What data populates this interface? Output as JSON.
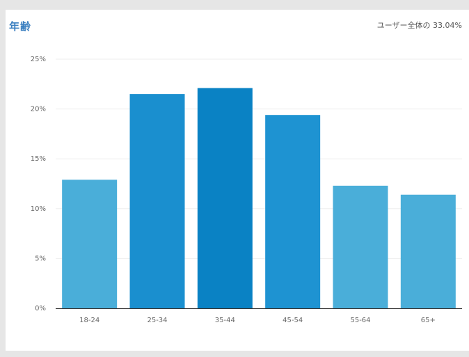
{
  "header": {
    "title": "年齢",
    "subtitle": "ユーザー全体の 33.04%"
  },
  "chart_data": {
    "type": "bar",
    "title": "年齢",
    "subtitle": "ユーザー全体の 33.04%",
    "categories": [
      "18-24",
      "25-34",
      "35-44",
      "45-54",
      "55-64",
      "65+"
    ],
    "values": [
      12.9,
      21.5,
      22.1,
      19.4,
      12.3,
      11.4
    ],
    "y_ticks": [
      "0%",
      "5%",
      "10%",
      "15%",
      "20%",
      "25%"
    ],
    "y_tick_values": [
      0,
      5,
      10,
      15,
      20,
      25
    ],
    "ylim": [
      0,
      25
    ],
    "grid": true,
    "bar_colors": [
      "#4aaed9",
      "#1a8fcf",
      "#0a82c4",
      "#1e93d2",
      "#4aaed9",
      "#4aaed9"
    ],
    "axis_color": "#333333",
    "grid_color": "#eeeeee"
  }
}
